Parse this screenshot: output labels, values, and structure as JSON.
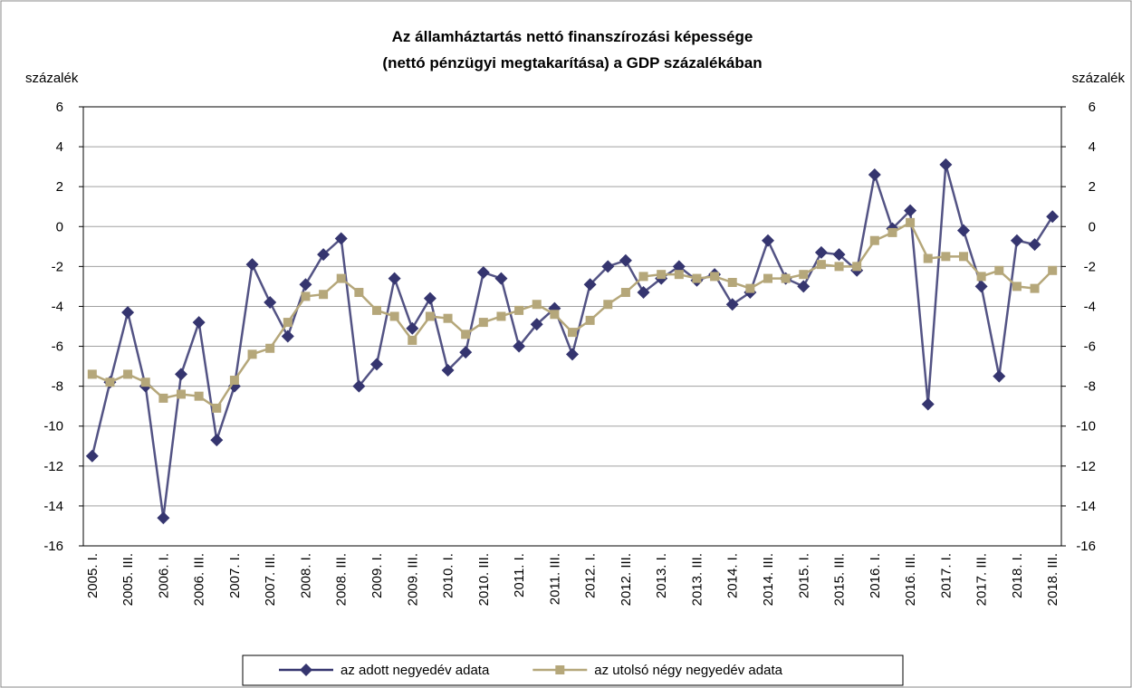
{
  "chart_data": {
    "type": "line",
    "title": [
      "Az államháztartás nettó finanszírozási képessége",
      "(nettó pénzügyi megtakarítása) a GDP százalékában"
    ],
    "y_label": "százalék",
    "y2_label": "százalék",
    "categories": [
      "2005. I.",
      null,
      "2005. III.",
      null,
      "2006. I.",
      null,
      "2006. III.",
      null,
      "2007. I.",
      null,
      "2007. III.",
      null,
      "2008. I.",
      null,
      "2008. III.",
      null,
      "2009. I.",
      null,
      "2009. III.",
      null,
      "2010. I.",
      null,
      "2010. III.",
      null,
      "2011. I.",
      null,
      "2011. III.",
      null,
      "2012. I.",
      null,
      "2012. III.",
      null,
      "2013. I.",
      null,
      "2013. III.",
      null,
      "2014. I.",
      null,
      "2014. III.",
      null,
      "2015. I.",
      null,
      "2015. III.",
      null,
      "2016. I.",
      null,
      "2016. III.",
      null,
      "2017. I.",
      null,
      "2017. III.",
      null,
      "2018. I.",
      null,
      "2018. III."
    ],
    "series": [
      {
        "name": "az adott negyedév adata",
        "color": "#35356f",
        "marker": "diamond",
        "values": [
          -11.5,
          -7.8,
          -4.3,
          -8.0,
          -14.6,
          -7.4,
          -4.8,
          -10.7,
          -8.0,
          -1.9,
          -3.8,
          -5.5,
          -2.9,
          -1.4,
          -0.6,
          -8.0,
          -6.9,
          -2.6,
          -5.1,
          -3.6,
          -7.2,
          -6.3,
          -2.3,
          -2.6,
          -6.0,
          -4.9,
          -4.1,
          -6.4,
          -2.9,
          -2.0,
          -1.7,
          -3.3,
          -2.6,
          -2.0,
          -2.7,
          -2.4,
          -3.9,
          -3.3,
          -0.7,
          -2.6,
          -3.0,
          -1.3,
          -1.4,
          -2.2,
          2.6,
          -0.1,
          0.8,
          -8.9,
          3.1,
          -0.2,
          -3.0,
          -7.5,
          -0.7,
          -0.9,
          0.5
        ]
      },
      {
        "name": "az utolsó négy negyedév adata",
        "color": "#b5a77a",
        "marker": "square",
        "values": [
          -7.4,
          -7.8,
          -7.4,
          -7.8,
          -8.6,
          -8.4,
          -8.5,
          -9.1,
          -7.7,
          -6.4,
          -6.1,
          -4.8,
          -3.5,
          -3.4,
          -2.6,
          -3.3,
          -4.2,
          -4.5,
          -5.7,
          -4.5,
          -4.6,
          -5.4,
          -4.8,
          -4.5,
          -4.2,
          -3.9,
          -4.4,
          -5.3,
          -4.7,
          -3.9,
          -3.3,
          -2.5,
          -2.4,
          -2.4,
          -2.6,
          -2.5,
          -2.8,
          -3.1,
          -2.6,
          -2.6,
          -2.4,
          -1.9,
          -2.0,
          -2.0,
          -0.7,
          -0.3,
          0.2,
          -1.6,
          -1.5,
          -1.5,
          -2.5,
          -2.2,
          -3.0,
          -3.1,
          -2.2
        ]
      }
    ],
    "ylim": [
      -16,
      6
    ],
    "yticks": [
      -16,
      -14,
      -12,
      -10,
      -8,
      -6,
      -4,
      -2,
      0,
      2,
      4,
      6
    ],
    "y2lim": [
      -16,
      6
    ],
    "y2ticks": [
      -16,
      -14,
      -12,
      -10,
      -8,
      -6,
      -4,
      -2,
      0,
      2,
      4,
      6
    ],
    "grid": true,
    "legend": "bottom"
  }
}
